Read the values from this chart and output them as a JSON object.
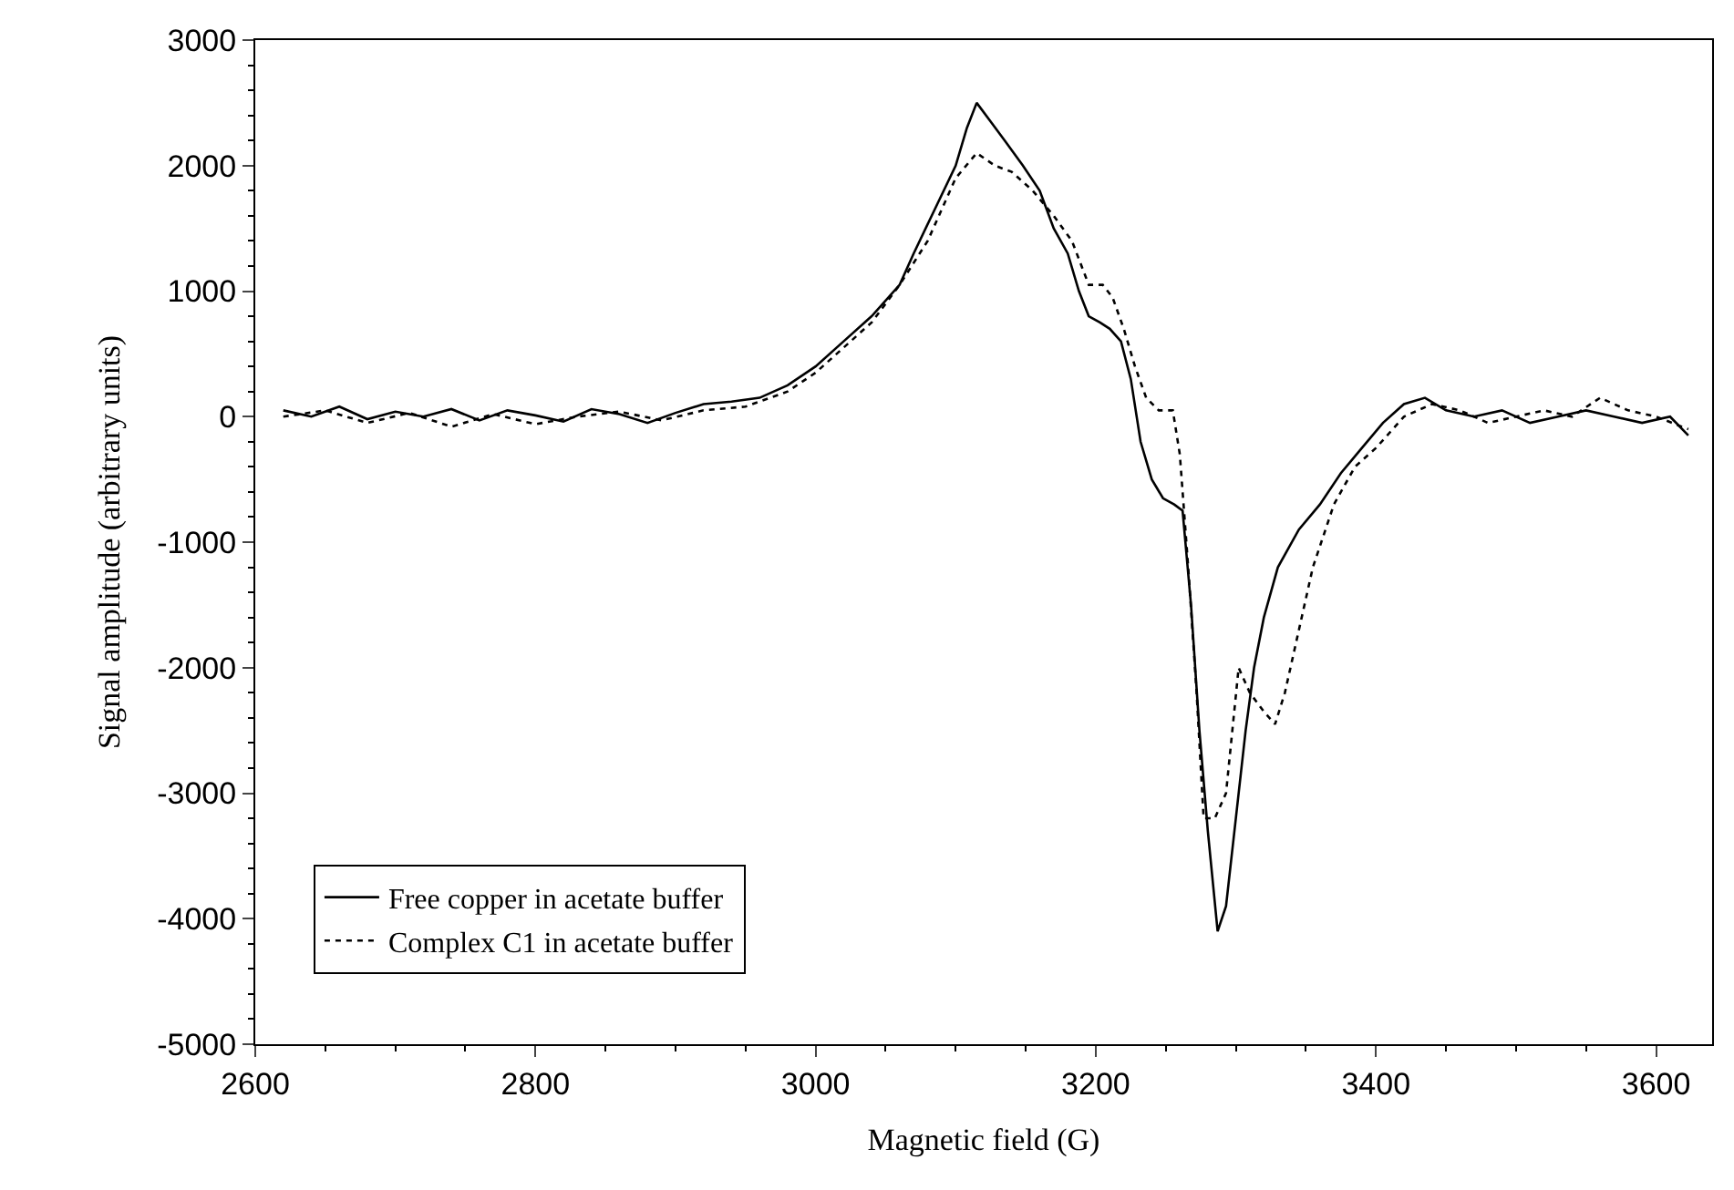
{
  "chart_data": {
    "type": "line",
    "xlabel": "Magnetic field (G)",
    "ylabel": "Signal amplitude (arbitrary units)",
    "xlim": [
      2600,
      3640
    ],
    "xticks": [
      2600,
      2800,
      3000,
      3200,
      3400,
      3600
    ],
    "ylim": [
      -5000,
      3000
    ],
    "yticks": [
      -5000,
      -4000,
      -3000,
      -2000,
      -1000,
      0,
      1000,
      2000,
      3000
    ],
    "legend": "bottom left",
    "marker": "none",
    "series": [
      {
        "name": "Free copper in acetate buffer",
        "color": "#000000",
        "line_style": "solid",
        "x": [
          2620,
          2640,
          2660,
          2680,
          2700,
          2720,
          2740,
          2760,
          2780,
          2800,
          2820,
          2840,
          2860,
          2880,
          2900,
          2920,
          2940,
          2960,
          2980,
          3000,
          3020,
          3040,
          3060,
          3070,
          3085,
          3100,
          3108,
          3115,
          3125,
          3135,
          3148,
          3160,
          3170,
          3180,
          3188,
          3195,
          3203,
          3210,
          3218,
          3225,
          3232,
          3240,
          3248,
          3256,
          3262,
          3268,
          3274,
          3280,
          3287,
          3293,
          3300,
          3307,
          3313,
          3320,
          3330,
          3345,
          3360,
          3375,
          3390,
          3405,
          3420,
          3435,
          3450,
          3470,
          3490,
          3510,
          3530,
          3550,
          3570,
          3590,
          3610,
          3623
        ],
        "values": [
          50,
          0,
          80,
          -20,
          40,
          0,
          60,
          -30,
          50,
          10,
          -40,
          60,
          20,
          -50,
          30,
          100,
          120,
          150,
          250,
          400,
          600,
          800,
          1050,
          1300,
          1650,
          2000,
          2300,
          2500,
          2350,
          2200,
          2000,
          1800,
          1500,
          1300,
          1000,
          800,
          750,
          700,
          600,
          300,
          -200,
          -500,
          -650,
          -700,
          -750,
          -1500,
          -2500,
          -3300,
          -4100,
          -3900,
          -3200,
          -2500,
          -2000,
          -1600,
          -1200,
          -900,
          -700,
          -450,
          -250,
          -50,
          100,
          150,
          50,
          0,
          50,
          -50,
          0,
          50,
          0,
          -50,
          0,
          -150
        ]
      },
      {
        "name": "Complex C1 in acetate buffer",
        "color": "#000000",
        "line_style": "dashed",
        "x": [
          2620,
          2650,
          2680,
          2710,
          2740,
          2770,
          2800,
          2830,
          2860,
          2890,
          2920,
          2950,
          2980,
          3000,
          3020,
          3040,
          3060,
          3080,
          3100,
          3115,
          3128,
          3140,
          3155,
          3170,
          3183,
          3195,
          3205,
          3212,
          3220,
          3228,
          3236,
          3245,
          3255,
          3260,
          3266,
          3272,
          3277,
          3285,
          3293,
          3302,
          3310,
          3320,
          3328,
          3335,
          3345,
          3355,
          3370,
          3385,
          3400,
          3420,
          3440,
          3460,
          3480,
          3500,
          3520,
          3540,
          3560,
          3580,
          3600,
          3623
        ],
        "values": [
          0,
          50,
          -50,
          30,
          -80,
          20,
          -60,
          0,
          40,
          -30,
          50,
          80,
          200,
          350,
          550,
          750,
          1050,
          1400,
          1900,
          2100,
          2000,
          1950,
          1800,
          1600,
          1400,
          1050,
          1050,
          950,
          700,
          400,
          150,
          50,
          50,
          -300,
          -1200,
          -2200,
          -3200,
          -3200,
          -3000,
          -2000,
          -2200,
          -2350,
          -2450,
          -2200,
          -1700,
          -1200,
          -700,
          -400,
          -250,
          0,
          100,
          50,
          -50,
          0,
          50,
          0,
          150,
          50,
          0,
          -100
        ]
      }
    ]
  }
}
